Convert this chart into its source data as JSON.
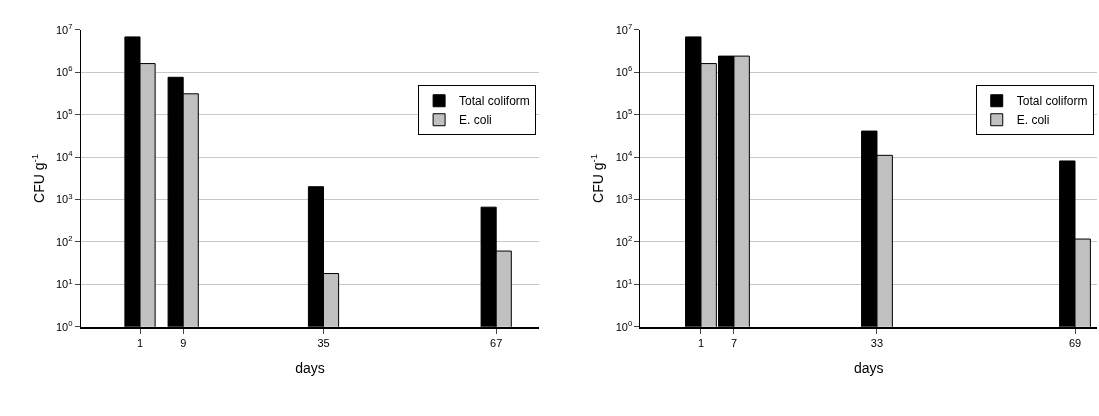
{
  "chart_data": [
    {
      "type": "bar",
      "xlabel": "days",
      "ylabel": "CFU g$^{-1}$",
      "x": [
        1,
        9,
        35,
        67
      ],
      "xlim": [
        -10,
        75
      ],
      "xticks": [
        1,
        9,
        35,
        67
      ],
      "ylim": [
        1,
        10000000
      ],
      "log": "y",
      "grid": "y",
      "legend": "top right",
      "yticks": [
        {
          "value": 1,
          "label": "10$^{0}$"
        },
        {
          "value": 10,
          "label": "10$^{1}$"
        },
        {
          "value": 100,
          "label": "10$^{2}$"
        },
        {
          "value": 1000,
          "label": "10$^{3}$"
        },
        {
          "value": 10000,
          "label": "10$^{4}$"
        },
        {
          "value": 100000,
          "label": "10$^{5}$"
        },
        {
          "value": 1000000,
          "label": "10$^{6}$"
        },
        {
          "value": 10000000,
          "label": "10$^{7}$"
        }
      ],
      "series": [
        {
          "name": "Total coliform",
          "color": "#000000",
          "values": [
            6800000,
            760000,
            2000,
            660
          ]
        },
        {
          "name": "E. coli",
          "color": "#c0c0c0",
          "values": [
            1600000,
            310000,
            18,
            61
          ]
        }
      ]
    },
    {
      "type": "bar",
      "xlabel": "days",
      "ylabel": "CFU g$^{-1}$",
      "x": [
        1,
        7,
        33,
        69
      ],
      "xlim": [
        -10,
        73
      ],
      "xticks": [
        1,
        7,
        33,
        69
      ],
      "ylim": [
        1,
        10000000
      ],
      "log": "y",
      "grid": "y",
      "legend": "top right",
      "yticks": [
        {
          "value": 1,
          "label": "10$^{0}$"
        },
        {
          "value": 10,
          "label": "10$^{1}$"
        },
        {
          "value": 100,
          "label": "10$^{2}$"
        },
        {
          "value": 1000,
          "label": "10$^{3}$"
        },
        {
          "value": 10000,
          "label": "10$^{4}$"
        },
        {
          "value": 100000,
          "label": "10$^{5}$"
        },
        {
          "value": 1000000,
          "label": "10$^{6}$"
        },
        {
          "value": 10000000,
          "label": "10$^{7}$"
        }
      ],
      "series": [
        {
          "name": "Total coliform",
          "color": "#000000",
          "values": [
            6800000,
            2400000,
            41000,
            8100
          ]
        },
        {
          "name": "E. coli",
          "color": "#c0c0c0",
          "values": [
            1600000,
            2400000,
            11000,
            117
          ]
        }
      ]
    }
  ]
}
